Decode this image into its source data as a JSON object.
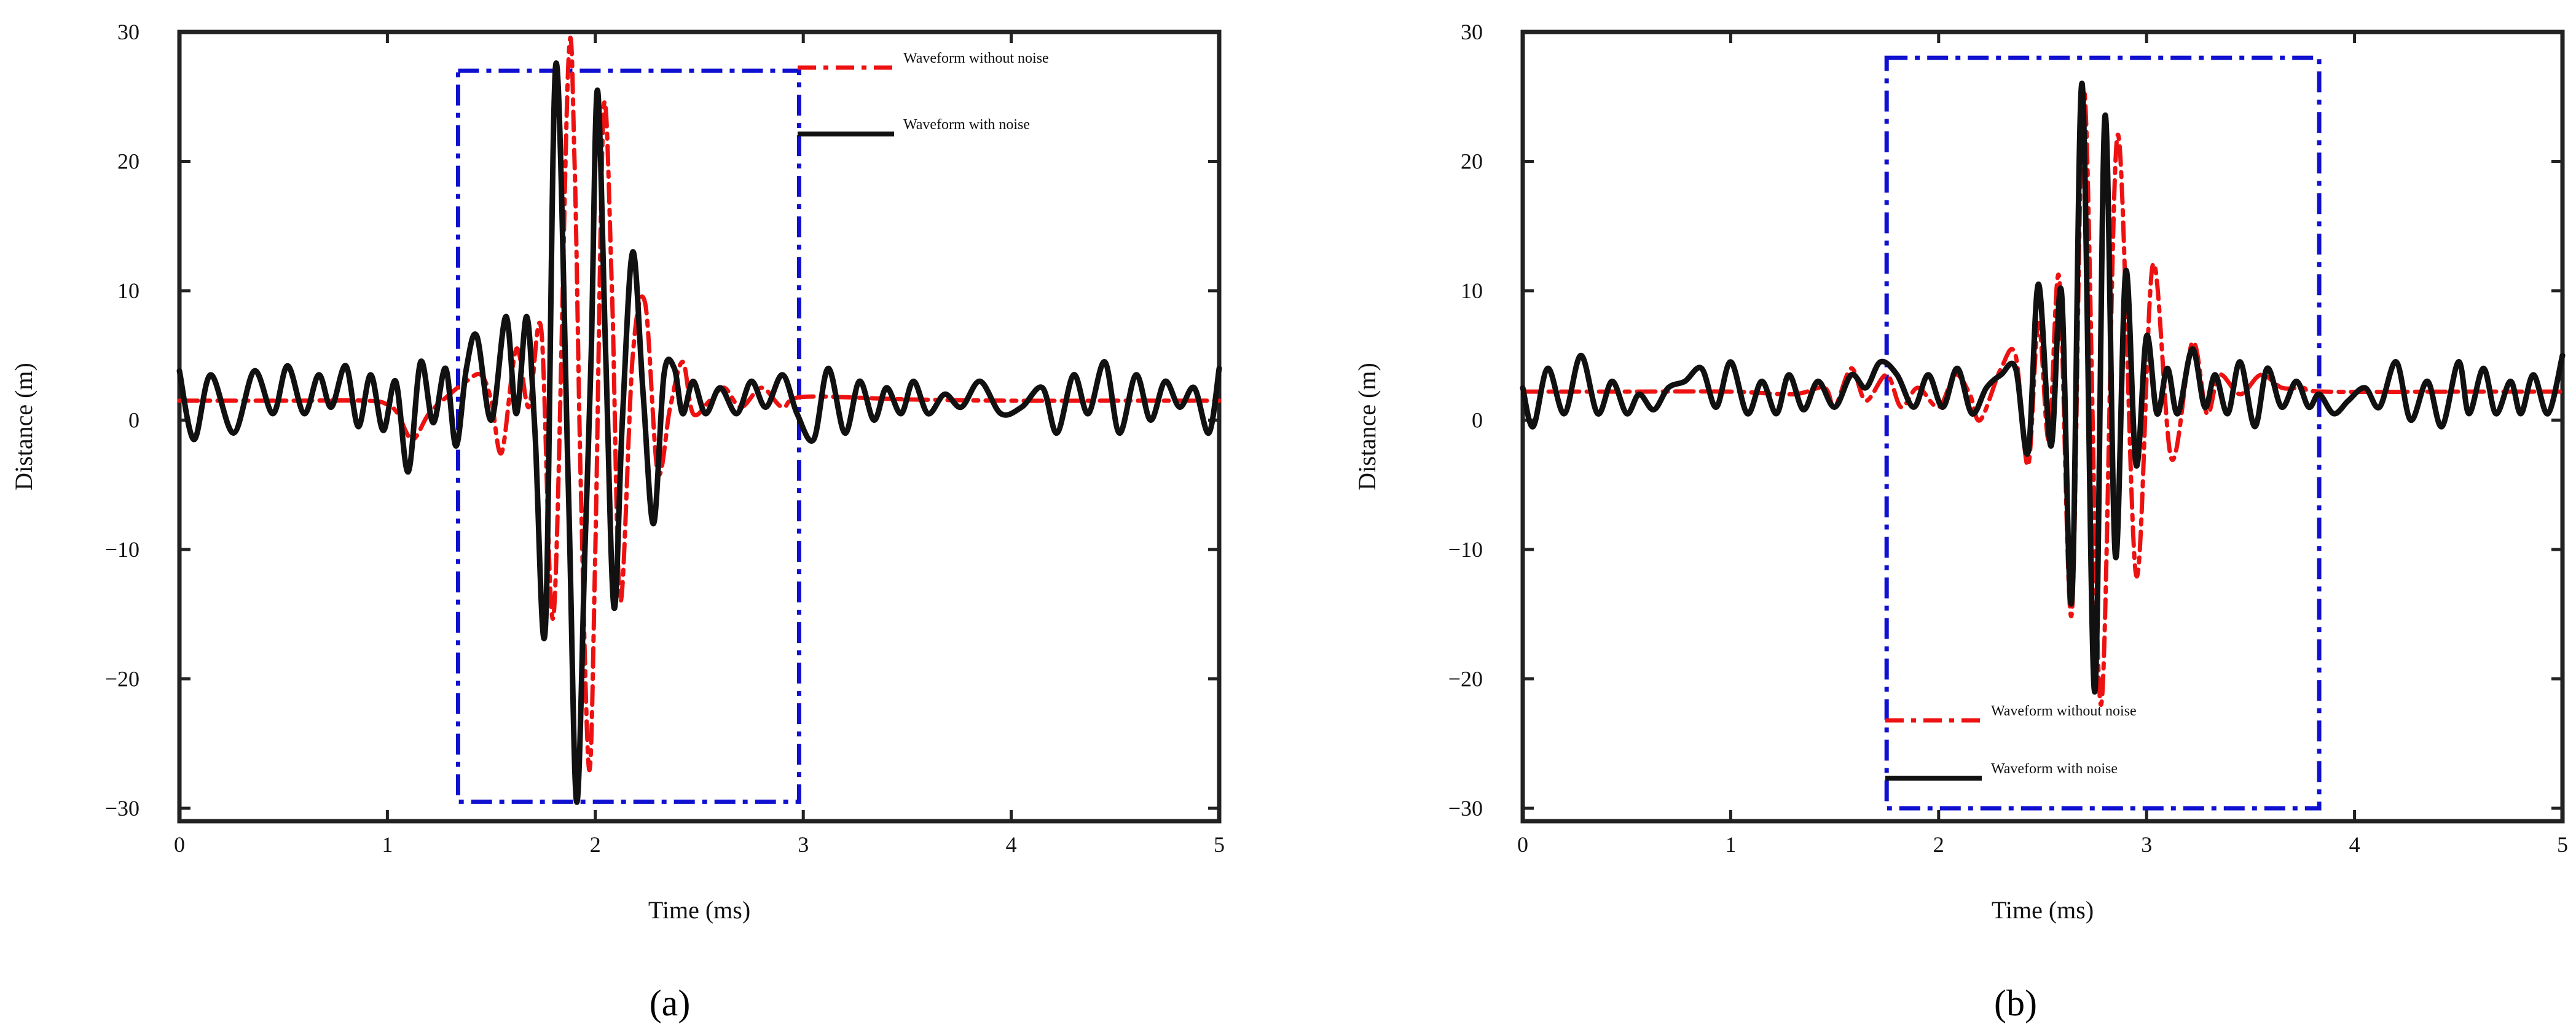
{
  "chart_data": [
    {
      "type": "line",
      "panel_label": "(a)",
      "xlabel": "Time (ms)",
      "ylabel": "Distance (m)",
      "xlim": [
        0,
        5
      ],
      "ylim": [
        -31,
        30
      ],
      "xticks": [
        0,
        1,
        2,
        3,
        4,
        5
      ],
      "yticks": [
        -30,
        -20,
        -10,
        0,
        10,
        20,
        30
      ],
      "grid": false,
      "highlight_box": {
        "x": [
          1.34,
          2.98
        ],
        "y": [
          -29.5,
          27
        ],
        "color": "#1010d0",
        "style": "dash-dot"
      },
      "legend": {
        "placement": "top-right, inside box edge"
      },
      "series": [
        {
          "name": "Waveform without noise",
          "color": "#ee1111",
          "style": "dash-dot",
          "x": [
            0,
            0.5,
            0.9,
            1.0,
            1.05,
            1.12,
            1.2,
            1.3,
            1.38,
            1.45,
            1.5,
            1.55,
            1.62,
            1.68,
            1.74,
            1.8,
            1.87,
            1.9,
            1.93,
            1.97,
            2.0,
            2.04,
            2.08,
            2.12,
            2.18,
            2.24,
            2.3,
            2.36,
            2.42,
            2.47,
            2.55,
            2.62,
            2.7,
            2.8,
            2.9,
            3.0,
            3.5,
            4.0,
            4.5,
            5.0
          ],
          "values": [
            1.5,
            1.5,
            1.5,
            1.2,
            0.5,
            -1.5,
            0.5,
            2.0,
            3.0,
            3.5,
            1.5,
            -2.5,
            5.5,
            1.0,
            7.0,
            -15,
            27.5,
            20,
            -5,
            -27,
            -10,
            24,
            10,
            -14,
            5,
            9,
            -4,
            1,
            4.5,
            0.5,
            1.5,
            2.5,
            1.0,
            2.5,
            1.0,
            1.8,
            1.6,
            1.5,
            1.5,
            1.5
          ]
        },
        {
          "name": "Waveform with noise",
          "color": "#111111",
          "style": "solid",
          "x": [
            0,
            0.07,
            0.15,
            0.26,
            0.36,
            0.45,
            0.52,
            0.6,
            0.67,
            0.73,
            0.8,
            0.86,
            0.92,
            0.98,
            1.04,
            1.1,
            1.16,
            1.22,
            1.28,
            1.33,
            1.38,
            1.43,
            1.5,
            1.57,
            1.62,
            1.67,
            1.71,
            1.76,
            1.81,
            1.87,
            1.91,
            1.95,
            1.98,
            2.01,
            2.05,
            2.09,
            2.13,
            2.18,
            2.23,
            2.28,
            2.33,
            2.38,
            2.42,
            2.47,
            2.53,
            2.6,
            2.68,
            2.75,
            2.82,
            2.9,
            2.97,
            3.05,
            3.12,
            3.2,
            3.27,
            3.34,
            3.4,
            3.47,
            3.53,
            3.6,
            3.68,
            3.76,
            3.85,
            3.95,
            4.05,
            4.15,
            4.22,
            4.3,
            4.37,
            4.45,
            4.52,
            4.6,
            4.67,
            4.74,
            4.81,
            4.88,
            4.95,
            5.0
          ],
          "values": [
            3.8,
            -1.5,
            3.5,
            -1.0,
            3.8,
            0.5,
            4.2,
            0.5,
            3.5,
            1.0,
            4.2,
            -0.5,
            3.5,
            -0.8,
            3.0,
            -4.0,
            4.5,
            -0.2,
            4.0,
            -2.0,
            4.0,
            6.5,
            0.0,
            8.0,
            0.5,
            8.0,
            -1.0,
            -16,
            27.5,
            -5,
            -29.5,
            -10,
            5,
            25.5,
            5,
            -14.5,
            0,
            13,
            2,
            -8,
            3.5,
            4,
            0.5,
            3.0,
            0.5,
            2.5,
            0.5,
            3.0,
            1.0,
            3.5,
            0.5,
            -1.5,
            4.0,
            -1.0,
            3.0,
            0.0,
            2.5,
            0.5,
            3.0,
            0.5,
            2.0,
            1.0,
            3.0,
            0.5,
            1.0,
            2.5,
            -1.0,
            3.5,
            0.5,
            4.5,
            -1.0,
            3.5,
            0.0,
            3.0,
            1.0,
            2.5,
            -1.0,
            4.0
          ]
        }
      ]
    },
    {
      "type": "line",
      "panel_label": "(b)",
      "xlabel": "Time (ms)",
      "ylabel": "Distance (m)",
      "xlim": [
        0,
        5
      ],
      "ylim": [
        -31,
        30
      ],
      "xticks": [
        0,
        1,
        2,
        3,
        4,
        5
      ],
      "yticks": [
        -30,
        -20,
        -10,
        0,
        10,
        20,
        30
      ],
      "grid": false,
      "highlight_box": {
        "x": [
          1.75,
          3.83
        ],
        "y": [
          -30,
          28
        ],
        "color": "#1010d0",
        "style": "dash-dot"
      },
      "legend": {
        "placement": "bottom-left, inside box"
      },
      "series": [
        {
          "name": "Waveform without noise",
          "color": "#ee1111",
          "style": "dash-dot",
          "x": [
            0,
            0.5,
            1.0,
            1.3,
            1.45,
            1.5,
            1.58,
            1.65,
            1.75,
            1.82,
            1.9,
            2.0,
            2.08,
            2.15,
            2.2,
            2.3,
            2.37,
            2.43,
            2.48,
            2.53,
            2.58,
            2.64,
            2.7,
            2.78,
            2.86,
            2.95,
            3.03,
            3.12,
            3.22,
            3.29,
            3.35,
            3.45,
            3.55,
            3.65,
            3.75,
            3.85,
            4.5,
            5.0
          ],
          "values": [
            2.2,
            2.2,
            2.2,
            2.0,
            2.5,
            1.0,
            4.0,
            1.5,
            3.5,
            1.0,
            2.5,
            1.0,
            3.5,
            2.0,
            0.0,
            4.0,
            5.0,
            -3.5,
            7.5,
            -1.5,
            11,
            -15,
            25.5,
            -22,
            22,
            -12,
            12,
            -3,
            6,
            0.5,
            3.5,
            2.0,
            3.5,
            2.5,
            2.5,
            2.2,
            2.2,
            2.2
          ]
        },
        {
          "name": "Waveform with noise",
          "color": "#111111",
          "style": "solid",
          "x": [
            0,
            0.05,
            0.12,
            0.2,
            0.28,
            0.36,
            0.43,
            0.5,
            0.56,
            0.63,
            0.7,
            0.78,
            0.86,
            0.93,
            1.0,
            1.08,
            1.15,
            1.22,
            1.28,
            1.35,
            1.42,
            1.5,
            1.58,
            1.65,
            1.72,
            1.8,
            1.88,
            1.95,
            2.02,
            2.09,
            2.16,
            2.23,
            2.3,
            2.37,
            2.43,
            2.48,
            2.54,
            2.59,
            2.64,
            2.69,
            2.75,
            2.8,
            2.85,
            2.9,
            2.95,
            3.0,
            3.05,
            3.1,
            3.15,
            3.22,
            3.28,
            3.33,
            3.39,
            3.45,
            3.52,
            3.58,
            3.65,
            3.72,
            3.78,
            3.83,
            3.9,
            3.97,
            4.05,
            4.12,
            4.2,
            4.27,
            4.35,
            4.42,
            4.5,
            4.55,
            4.62,
            4.68,
            4.75,
            4.8,
            4.86,
            4.93,
            5.0
          ],
          "values": [
            2.5,
            -0.5,
            4.0,
            0.5,
            5.0,
            0.5,
            3.0,
            0.5,
            2.0,
            0.8,
            2.5,
            3.0,
            4.0,
            1.0,
            4.5,
            0.5,
            3.0,
            0.5,
            3.5,
            0.8,
            3.0,
            1.0,
            3.5,
            2.5,
            4.5,
            3.5,
            1.0,
            3.5,
            1.0,
            4.0,
            0.5,
            2.5,
            3.5,
            4.0,
            -2.5,
            10.5,
            -2,
            10,
            -14,
            26,
            -21,
            23.5,
            -10.5,
            11.5,
            -3.5,
            6.5,
            0.5,
            4.0,
            0.5,
            5.5,
            1.0,
            3.5,
            0.5,
            4.5,
            -0.5,
            4.0,
            1.0,
            3.0,
            1.0,
            2.0,
            0.5,
            1.5,
            2.5,
            1.0,
            4.5,
            0.0,
            3.0,
            -0.5,
            4.5,
            0.5,
            4.0,
            0.5,
            3.0,
            0.5,
            3.5,
            0.5,
            5.0
          ]
        }
      ]
    }
  ]
}
